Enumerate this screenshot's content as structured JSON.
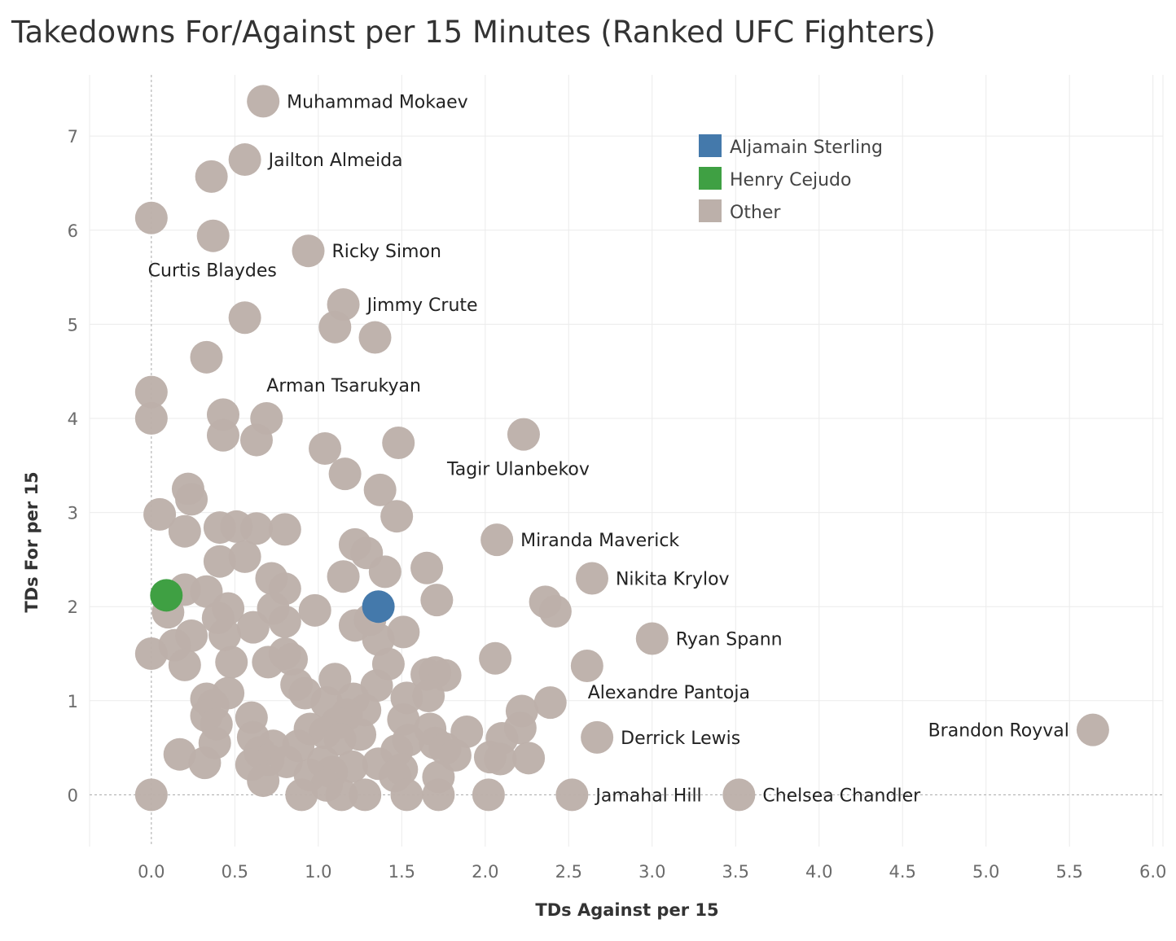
{
  "chart_data": {
    "type": "scatter",
    "title": "Takedowns For/Against per 15 Minutes (Ranked UFC Fighters)",
    "xlabel": "TDs Against per 15",
    "ylabel": "TDs For per 15",
    "xlim": [
      -0.37,
      6.06
    ],
    "ylim": [
      -0.55,
      7.65
    ],
    "x_ticks": [
      "0.0",
      "0.5",
      "1.0",
      "1.5",
      "2.0",
      "2.5",
      "3.0",
      "3.5",
      "4.0",
      "4.5",
      "5.0",
      "5.5",
      "6.0"
    ],
    "y_ticks": [
      "0",
      "1",
      "2",
      "3",
      "4",
      "5",
      "6",
      "7"
    ],
    "grid": true,
    "zero_lines": true,
    "legend_position": "top-right",
    "legend": [
      {
        "name": "Aljamain Sterling",
        "color": "#4479ab"
      },
      {
        "name": "Henry Cejudo",
        "color": "#3fa043"
      },
      {
        "name": "Other",
        "color": "#bcb0aa"
      }
    ],
    "series": [
      {
        "name": "Other",
        "color": "#bcb0aa",
        "points": [
          {
            "x": 0.67,
            "y": 7.37,
            "label": "Muhammad Mokaev"
          },
          {
            "x": 0.56,
            "y": 6.75,
            "label": "Jailton Almeida"
          },
          {
            "x": 0.36,
            "y": 6.57
          },
          {
            "x": 0.0,
            "y": 6.13
          },
          {
            "x": 0.37,
            "y": 5.94,
            "label": "Curtis Blaydes",
            "label_pos": "below"
          },
          {
            "x": 0.94,
            "y": 5.78,
            "label": "Ricky Simon"
          },
          {
            "x": 1.15,
            "y": 5.21,
            "label": "Jimmy Crute"
          },
          {
            "x": 0.56,
            "y": 5.07
          },
          {
            "x": 1.1,
            "y": 4.97
          },
          {
            "x": 1.34,
            "y": 4.86
          },
          {
            "x": 0.33,
            "y": 4.65
          },
          {
            "x": 0.0,
            "y": 4.28
          },
          {
            "x": 0.69,
            "y": 4.0,
            "label": "Arman Tsarukyan",
            "label_pos": "above"
          },
          {
            "x": 0.43,
            "y": 4.04
          },
          {
            "x": 0.0,
            "y": 4.0
          },
          {
            "x": 0.43,
            "y": 3.82
          },
          {
            "x": 0.63,
            "y": 3.77
          },
          {
            "x": 2.23,
            "y": 3.83,
            "label": "Tagir Ulanbekov",
            "label_pos": "below"
          },
          {
            "x": 1.04,
            "y": 3.68
          },
          {
            "x": 1.48,
            "y": 3.74
          },
          {
            "x": 1.16,
            "y": 3.41
          },
          {
            "x": 1.37,
            "y": 3.24
          },
          {
            "x": 0.22,
            "y": 3.25
          },
          {
            "x": 0.24,
            "y": 3.14
          },
          {
            "x": 0.05,
            "y": 2.98
          },
          {
            "x": 1.47,
            "y": 2.96
          },
          {
            "x": 0.2,
            "y": 2.8
          },
          {
            "x": 0.41,
            "y": 2.84
          },
          {
            "x": 0.51,
            "y": 2.85
          },
          {
            "x": 0.63,
            "y": 2.83
          },
          {
            "x": 0.8,
            "y": 2.82
          },
          {
            "x": 2.07,
            "y": 2.71,
            "label": "Miranda Maverick"
          },
          {
            "x": 1.22,
            "y": 2.66
          },
          {
            "x": 1.29,
            "y": 2.57
          },
          {
            "x": 0.41,
            "y": 2.48
          },
          {
            "x": 0.56,
            "y": 2.53
          },
          {
            "x": 1.65,
            "y": 2.41
          },
          {
            "x": 1.4,
            "y": 2.37
          },
          {
            "x": 1.15,
            "y": 2.32
          },
          {
            "x": 0.72,
            "y": 2.3
          },
          {
            "x": 2.64,
            "y": 2.3,
            "label": "Nikita Krylov"
          },
          {
            "x": 0.8,
            "y": 2.19
          },
          {
            "x": 0.2,
            "y": 2.18
          },
          {
            "x": 0.33,
            "y": 2.16
          },
          {
            "x": 1.71,
            "y": 2.07
          },
          {
            "x": 2.36,
            "y": 2.05
          },
          {
            "x": 2.42,
            "y": 1.95
          },
          {
            "x": 0.1,
            "y": 1.94
          },
          {
            "x": 0.46,
            "y": 1.98
          },
          {
            "x": 0.73,
            "y": 1.98
          },
          {
            "x": 0.98,
            "y": 1.96
          },
          {
            "x": 0.4,
            "y": 1.88
          },
          {
            "x": 0.61,
            "y": 1.78
          },
          {
            "x": 0.8,
            "y": 1.84
          },
          {
            "x": 1.22,
            "y": 1.8
          },
          {
            "x": 1.31,
            "y": 1.86
          },
          {
            "x": 1.51,
            "y": 1.73
          },
          {
            "x": 0.24,
            "y": 1.69
          },
          {
            "x": 0.44,
            "y": 1.7
          },
          {
            "x": 3.0,
            "y": 1.66,
            "label": "Ryan Spann"
          },
          {
            "x": 1.36,
            "y": 1.65
          },
          {
            "x": 0.14,
            "y": 1.59
          },
          {
            "x": 0.0,
            "y": 1.5
          },
          {
            "x": 0.8,
            "y": 1.5
          },
          {
            "x": 0.84,
            "y": 1.44
          },
          {
            "x": 2.06,
            "y": 1.45
          },
          {
            "x": 0.7,
            "y": 1.41
          },
          {
            "x": 0.48,
            "y": 1.41
          },
          {
            "x": 1.42,
            "y": 1.39
          },
          {
            "x": 0.2,
            "y": 1.38
          },
          {
            "x": 2.61,
            "y": 1.37
          },
          {
            "x": 1.65,
            "y": 1.28
          },
          {
            "x": 1.7,
            "y": 1.3
          },
          {
            "x": 1.76,
            "y": 1.27
          },
          {
            "x": 1.1,
            "y": 1.23
          },
          {
            "x": 0.87,
            "y": 1.17
          },
          {
            "x": 1.35,
            "y": 1.16
          },
          {
            "x": 0.92,
            "y": 1.08
          },
          {
            "x": 0.46,
            "y": 1.08
          },
          {
            "x": 0.33,
            "y": 1.02
          },
          {
            "x": 1.66,
            "y": 1.05
          },
          {
            "x": 1.53,
            "y": 1.03
          },
          {
            "x": 2.39,
            "y": 0.98,
            "label": "Alexandre Pantoja",
            "label_pos": "below"
          },
          {
            "x": 1.05,
            "y": 0.98
          },
          {
            "x": 1.21,
            "y": 1.02
          },
          {
            "x": 0.37,
            "y": 0.95
          },
          {
            "x": 2.22,
            "y": 0.89
          },
          {
            "x": 1.28,
            "y": 0.9
          },
          {
            "x": 0.33,
            "y": 0.84
          },
          {
            "x": 0.6,
            "y": 0.82
          },
          {
            "x": 1.17,
            "y": 0.85
          },
          {
            "x": 1.51,
            "y": 0.8
          },
          {
            "x": 0.39,
            "y": 0.75
          },
          {
            "x": 1.11,
            "y": 0.76
          },
          {
            "x": 2.21,
            "y": 0.71
          },
          {
            "x": 1.67,
            "y": 0.7
          },
          {
            "x": 1.89,
            "y": 0.67
          },
          {
            "x": 5.64,
            "y": 0.69,
            "label": "Brandon Royval",
            "label_pos": "left"
          },
          {
            "x": 0.95,
            "y": 0.7
          },
          {
            "x": 1.04,
            "y": 0.66
          },
          {
            "x": 1.25,
            "y": 0.64
          },
          {
            "x": 0.61,
            "y": 0.61
          },
          {
            "x": 2.67,
            "y": 0.61,
            "label": "Derrick Lewis"
          },
          {
            "x": 2.1,
            "y": 0.6
          },
          {
            "x": 1.13,
            "y": 0.59
          },
          {
            "x": 1.54,
            "y": 0.58
          },
          {
            "x": 1.7,
            "y": 0.55
          },
          {
            "x": 0.38,
            "y": 0.55
          },
          {
            "x": 0.73,
            "y": 0.52
          },
          {
            "x": 0.88,
            "y": 0.52
          },
          {
            "x": 1.76,
            "y": 0.49
          },
          {
            "x": 1.47,
            "y": 0.47
          },
          {
            "x": 0.17,
            "y": 0.43
          },
          {
            "x": 0.65,
            "y": 0.45
          },
          {
            "x": 1.82,
            "y": 0.42
          },
          {
            "x": 2.03,
            "y": 0.4
          },
          {
            "x": 2.26,
            "y": 0.39
          },
          {
            "x": 2.09,
            "y": 0.38
          },
          {
            "x": 0.7,
            "y": 0.37
          },
          {
            "x": 0.81,
            "y": 0.35
          },
          {
            "x": 1.03,
            "y": 0.35
          },
          {
            "x": 1.36,
            "y": 0.33
          },
          {
            "x": 0.32,
            "y": 0.34
          },
          {
            "x": 0.6,
            "y": 0.32
          },
          {
            "x": 1.2,
            "y": 0.3
          },
          {
            "x": 1.5,
            "y": 0.27
          },
          {
            "x": 1.08,
            "y": 0.24
          },
          {
            "x": 0.95,
            "y": 0.21
          },
          {
            "x": 1.72,
            "y": 0.19
          },
          {
            "x": 1.46,
            "y": 0.2
          },
          {
            "x": 0.67,
            "y": 0.15
          },
          {
            "x": 1.05,
            "y": 0.1
          },
          {
            "x": 0.0,
            "y": 0.0
          },
          {
            "x": 0.9,
            "y": 0.0
          },
          {
            "x": 1.14,
            "y": 0.0
          },
          {
            "x": 1.28,
            "y": 0.0
          },
          {
            "x": 1.53,
            "y": 0.0
          },
          {
            "x": 1.72,
            "y": 0.0
          },
          {
            "x": 2.02,
            "y": 0.0
          },
          {
            "x": 2.52,
            "y": 0.0,
            "label": "Jamahal Hill"
          },
          {
            "x": 3.52,
            "y": 0.0,
            "label": "Chelsea Chandler"
          }
        ]
      },
      {
        "name": "Henry Cejudo",
        "color": "#3fa043",
        "points": [
          {
            "x": 0.09,
            "y": 2.12
          }
        ]
      },
      {
        "name": "Aljamain Sterling",
        "color": "#4479ab",
        "points": [
          {
            "x": 1.36,
            "y": 2.0
          }
        ]
      }
    ]
  }
}
